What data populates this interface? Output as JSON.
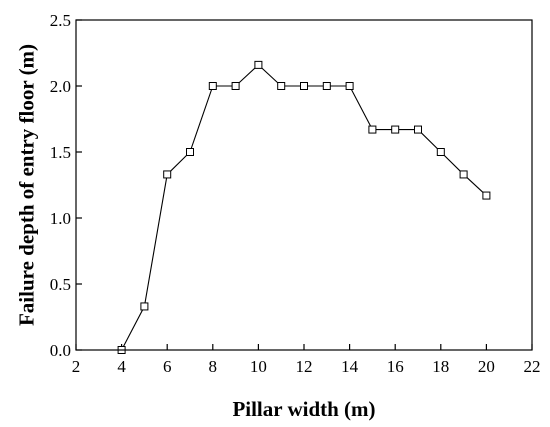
{
  "chart_data": {
    "type": "line",
    "title": "",
    "xlabel": "Pillar width (m)",
    "ylabel": "Failure depth of entry floor (m)",
    "xlim": [
      2,
      22
    ],
    "ylim": [
      0.0,
      2.5
    ],
    "xticks": [
      2,
      4,
      6,
      8,
      10,
      12,
      14,
      16,
      18,
      20,
      22
    ],
    "yticks": [
      0.0,
      0.5,
      1.0,
      1.5,
      2.0,
      2.5
    ],
    "xtick_labels": [
      "2",
      "4",
      "6",
      "8",
      "10",
      "12",
      "14",
      "16",
      "18",
      "20",
      "22"
    ],
    "ytick_labels": [
      "0.0",
      "0.5",
      "1.0",
      "1.5",
      "2.0",
      "2.5"
    ],
    "grid": false,
    "marker": "open-square",
    "line_color": "#000000",
    "series": [
      {
        "x": [
          4,
          5,
          6,
          7,
          8,
          9,
          10,
          11,
          12,
          13,
          14,
          15,
          16,
          17,
          18,
          19,
          20
        ],
        "y": [
          0.0,
          0.33,
          1.33,
          1.5,
          2.0,
          2.0,
          2.16,
          2.0,
          2.0,
          2.0,
          2.0,
          1.67,
          1.67,
          1.67,
          1.5,
          1.33,
          1.17
        ]
      }
    ]
  }
}
